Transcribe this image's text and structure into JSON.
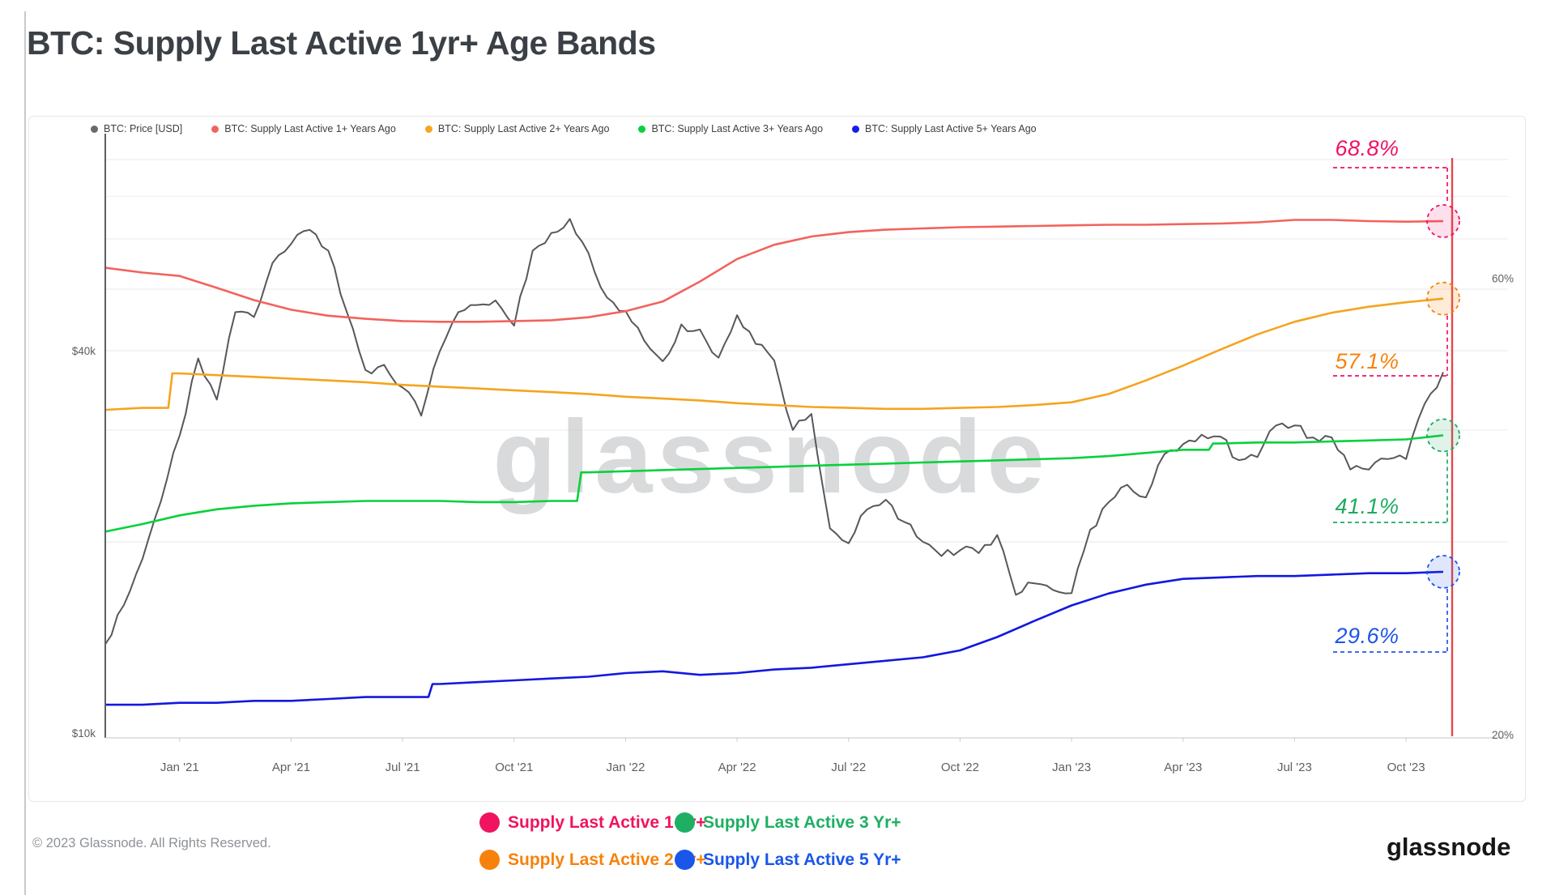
{
  "page": {
    "title": "BTC: Supply Last Active 1yr+ Age Bands",
    "footer_copyright": "© 2023 Glassnode. All Rights Reserved.",
    "brand_logo": "glassnode"
  },
  "top_legend": [
    {
      "label": "BTC: Price [USD]",
      "color": "#66696d"
    },
    {
      "label": "BTC: Supply Last Active 1+ Years Ago",
      "color": "#f2635e"
    },
    {
      "label": "BTC: Supply Last Active 2+ Years Ago",
      "color": "#f8a41d"
    },
    {
      "label": "BTC: Supply Last Active 3+ Years Ago",
      "color": "#0bd13c"
    },
    {
      "label": "BTC: Supply Last Active 5+ Years Ago",
      "color": "#1a1bee"
    }
  ],
  "bottom_legend": [
    {
      "label": "Supply Last Active 1 Yr+",
      "color": "#f0135f"
    },
    {
      "label": "Supply Last Active 3 Yr+",
      "color": "#1eaf62"
    },
    {
      "label": "Supply Last Active 2 Yr+",
      "color": "#f6820d"
    },
    {
      "label": "Supply Last Active 5 Yr+",
      "color": "#1a56e8"
    }
  ],
  "chart_data": {
    "type": "line",
    "title": "BTC: Supply Last Active 1yr+ Age Bands",
    "watermark": "glassnode",
    "legend_position": "top",
    "grid": true,
    "current_date_marker_color": "#e5484d",
    "axes": {
      "left": {
        "scale": "log",
        "unit": "USD",
        "ticks": [
          {
            "label": "$40k",
            "value": 40
          },
          {
            "label": "$10k",
            "value": 10
          }
        ]
      },
      "right": {
        "scale": "log",
        "unit": "percent",
        "ticks": [
          {
            "label": "60%",
            "value": 60
          },
          {
            "label": "20%",
            "value": 20
          }
        ]
      },
      "x": {
        "ticks": [
          {
            "label": "Jan '21",
            "month": 2
          },
          {
            "label": "Apr '21",
            "month": 5
          },
          {
            "label": "Jul '21",
            "month": 8
          },
          {
            "label": "Oct '21",
            "month": 11
          },
          {
            "label": "Jan '22",
            "month": 14
          },
          {
            "label": "Apr '22",
            "month": 17
          },
          {
            "label": "Jul '22",
            "month": 20
          },
          {
            "label": "Oct '22",
            "month": 23
          },
          {
            "label": "Jan '23",
            "month": 26
          },
          {
            "label": "Apr '23",
            "month": 29
          },
          {
            "label": "Jul '23",
            "month": 32
          },
          {
            "label": "Oct '23",
            "month": 35
          }
        ]
      }
    },
    "months": [
      "Nov '20",
      "Dec '20",
      "Jan '21",
      "Feb '21",
      "Mar '21",
      "Apr '21",
      "May '21",
      "Jun '21",
      "Jul '21",
      "Aug '21",
      "Sep '21",
      "Oct '21",
      "Nov '21",
      "Dec '21",
      "Jan '22",
      "Feb '22",
      "Mar '22",
      "Apr '22",
      "May '22",
      "Jun '22",
      "Jul '22",
      "Aug '22",
      "Sep '22",
      "Oct '22",
      "Nov '22",
      "Dec '22",
      "Jan '23",
      "Feb '23",
      "Mar '23",
      "Apr '23",
      "May '23",
      "Jun '23",
      "Jul '23",
      "Aug '23",
      "Sep '23",
      "Oct '23",
      "Nov '23"
    ],
    "series": [
      {
        "name": "BTC: Price [USD]",
        "axis": "price",
        "color": "#55585c",
        "x_step_months": 0.5,
        "values_usd_k": [
          13.8,
          15.9,
          18.8,
          23.2,
          29.4,
          38.9,
          33.5,
          46.0,
          45.2,
          55.0,
          58.9,
          62.0,
          57.5,
          46.0,
          37.3,
          38.0,
          35.0,
          31.6,
          39.9,
          46.0,
          47.2,
          48.0,
          43.8,
          57.5,
          61.3,
          64.5,
          57.0,
          48.5,
          46.2,
          41.5,
          38.5,
          44.0,
          43.2,
          39.0,
          45.5,
          41.0,
          38.6,
          30.0,
          31.8,
          21.0,
          19.9,
          22.5,
          23.3,
          21.5,
          20.0,
          19.0,
          19.4,
          19.2,
          20.5,
          16.5,
          17.2,
          16.8,
          16.6,
          20.9,
          23.1,
          24.6,
          23.5,
          27.5,
          28.5,
          29.5,
          29.3,
          26.9,
          27.2,
          30.5,
          30.5,
          29.2,
          29.2,
          26.0,
          26.0,
          27.0,
          27.0,
          33.0,
          37.0
        ]
      },
      {
        "name": "BTC: Supply Last Active 1+ Years Ago",
        "axis": "percent",
        "color": "#f2635e",
        "end_annotation": "68.8%",
        "annotation_color": "#ef1266",
        "dash_color": "#ef1266",
        "circle_fill": "rgba(239,18,102,0.13)",
        "step_months": [],
        "values_pct": [
          61.5,
          60.8,
          60.3,
          58.6,
          56.9,
          55.6,
          54.8,
          54.4,
          54.1,
          54.0,
          54.0,
          54.1,
          54.2,
          54.6,
          55.4,
          56.7,
          59.5,
          62.8,
          65.0,
          66.3,
          67.0,
          67.4,
          67.6,
          67.8,
          67.9,
          68.0,
          68.1,
          68.2,
          68.2,
          68.3,
          68.4,
          68.6,
          69.0,
          69.0,
          68.8,
          68.7,
          68.8
        ]
      },
      {
        "name": "BTC: Supply Last Active 2+ Years Ago",
        "axis": "percent",
        "color": "#f5a41f",
        "end_annotation": "57.1%",
        "annotation_color": "#f6820d",
        "dash_color": "#ef1266",
        "circle_fill": "rgba(246,130,13,0.16)",
        "step_months": [
          2
        ],
        "values_pct": [
          43.7,
          43.9,
          47.7,
          47.5,
          47.3,
          47.1,
          46.9,
          46.7,
          46.4,
          46.2,
          46.0,
          45.8,
          45.6,
          45.4,
          45.1,
          44.9,
          44.7,
          44.4,
          44.2,
          44.0,
          43.9,
          43.8,
          43.8,
          43.9,
          44.0,
          44.2,
          44.5,
          45.4,
          46.9,
          48.6,
          50.5,
          52.4,
          54.0,
          55.2,
          56.0,
          56.6,
          57.1
        ]
      },
      {
        "name": "BTC: Supply Last Active 3+ Years Ago",
        "axis": "percent",
        "color": "#07d13c",
        "end_annotation": "41.1%",
        "annotation_color": "#1cab61",
        "dash_color": "#1cab61",
        "circle_fill": "rgba(28,171,97,0.14)",
        "step_months": [
          13,
          30
        ],
        "values_pct": [
          32.6,
          33.2,
          33.9,
          34.4,
          34.7,
          34.9,
          35.0,
          35.1,
          35.1,
          35.1,
          35.0,
          35.0,
          35.1,
          37.6,
          37.7,
          37.8,
          37.9,
          38.0,
          38.1,
          38.2,
          38.3,
          38.4,
          38.5,
          38.6,
          38.7,
          38.8,
          38.9,
          39.1,
          39.4,
          39.7,
          40.3,
          40.4,
          40.4,
          40.5,
          40.6,
          40.7,
          41.1
        ]
      },
      {
        "name": "BTC: Supply Last Active 5+ Years Ago",
        "axis": "percent",
        "color": "#1318e0",
        "end_annotation": "29.6%",
        "annotation_color": "#1c55e8",
        "dash_color": "#2458e8",
        "circle_fill": "rgba(36,88,232,0.14)",
        "step_months": [
          9
        ],
        "values_pct": [
          21.5,
          21.5,
          21.6,
          21.6,
          21.7,
          21.7,
          21.8,
          21.9,
          21.9,
          22.6,
          22.7,
          22.8,
          22.9,
          23.0,
          23.2,
          23.3,
          23.1,
          23.2,
          23.4,
          23.5,
          23.7,
          23.9,
          24.1,
          24.5,
          25.3,
          26.3,
          27.3,
          28.1,
          28.7,
          29.1,
          29.2,
          29.3,
          29.3,
          29.4,
          29.5,
          29.5,
          29.6
        ]
      }
    ]
  }
}
